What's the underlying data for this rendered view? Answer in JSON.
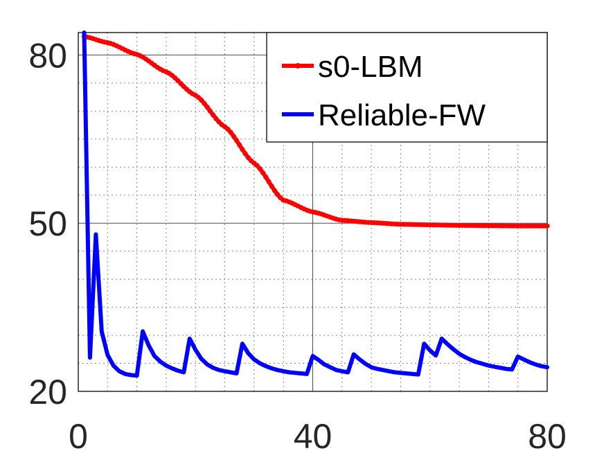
{
  "chart_data": {
    "type": "line",
    "title": "",
    "xlabel": "",
    "ylabel": "",
    "xlim": [
      0,
      80
    ],
    "ylim": [
      20,
      84
    ],
    "xticks": [
      0,
      40,
      80
    ],
    "xtick_labels": [
      "0",
      "40",
      "80"
    ],
    "yticks": [
      20,
      50,
      80
    ],
    "ytick_labels": [
      "20",
      "50",
      "80"
    ],
    "grid": true,
    "minor_grid": true,
    "legend_position": "top-right",
    "series": [
      {
        "name": "s0-LBM",
        "color": "#ff0000",
        "marker": "dot",
        "x": [
          1,
          5,
          10,
          15,
          20,
          25,
          30,
          35,
          40,
          45,
          50,
          55,
          60,
          65,
          70,
          75,
          80
        ],
        "y": [
          83.3,
          82.2,
          80.1,
          77.0,
          72.8,
          67.2,
          60.7,
          54.1,
          52.0,
          50.5,
          50.1,
          49.8,
          49.7,
          49.6,
          49.55,
          49.5,
          49.5
        ]
      },
      {
        "name": "Reliable-FW",
        "color": "#0000ff",
        "x": [
          1,
          2,
          3,
          4,
          5,
          6,
          7,
          8,
          9,
          10,
          11,
          12,
          13,
          14,
          15,
          16,
          17,
          18,
          19,
          20,
          21,
          22,
          23,
          24,
          25,
          26,
          27,
          28,
          29,
          30,
          31,
          32,
          33,
          34,
          35,
          36,
          37,
          38,
          39,
          40,
          41,
          42,
          43,
          44,
          45,
          46,
          47,
          48,
          49,
          50,
          51,
          52,
          53,
          54,
          55,
          56,
          57,
          58,
          59,
          60,
          61,
          62,
          63,
          64,
          65,
          66,
          67,
          68,
          69,
          70,
          71,
          72,
          73,
          74,
          75,
          76,
          77,
          78,
          79,
          80
        ],
        "y": [
          84.0,
          26.0,
          48.0,
          30.7,
          26.5,
          24.6,
          23.6,
          23.1,
          22.9,
          22.8,
          30.7,
          28.2,
          26.3,
          25.3,
          24.6,
          24.1,
          23.7,
          23.4,
          29.4,
          27.4,
          25.8,
          24.8,
          24.2,
          23.8,
          23.6,
          23.4,
          23.2,
          28.5,
          26.8,
          25.7,
          25.0,
          24.5,
          24.1,
          23.8,
          23.6,
          23.4,
          23.3,
          23.2,
          23.1,
          26.3,
          25.6,
          24.8,
          24.3,
          23.8,
          23.6,
          23.4,
          26.6,
          25.7,
          24.9,
          24.3,
          24.0,
          23.8,
          23.6,
          23.4,
          23.3,
          23.2,
          23.1,
          23.0,
          28.5,
          27.3,
          26.4,
          29.4,
          28.4,
          27.5,
          26.7,
          26.1,
          25.6,
          25.2,
          24.9,
          24.6,
          24.4,
          24.2,
          24.0,
          23.9,
          26.2,
          25.7,
          25.2,
          24.8,
          24.5,
          24.3
        ]
      }
    ]
  }
}
